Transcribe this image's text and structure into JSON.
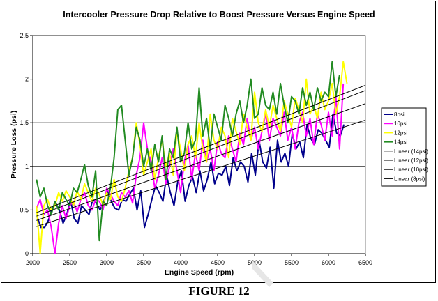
{
  "chart_data": {
    "type": "line",
    "title": "Intercooler Pressure Drop Relative to Boost Pressure Versus Engine Speed",
    "xlabel": "Engine Speed (rpm)",
    "ylabel": "Pressure Loss (psi)",
    "xlim": [
      2000,
      6500
    ],
    "ylim": [
      0,
      2.5
    ],
    "xticks": [
      "2000",
      "2500",
      "3000",
      "3500",
      "4000",
      "4500",
      "5000",
      "5500",
      "6000",
      "6500"
    ],
    "yticks": [
      "0",
      "0.5",
      "1",
      "1.5",
      "2",
      "2.5"
    ],
    "grid": "horizontal",
    "legend_position": "right",
    "series": [
      {
        "name": "8psi",
        "color": "#00008B",
        "x": [
          2060,
          2110,
          2160,
          2210,
          2260,
          2310,
          2360,
          2410,
          2460,
          2510,
          2560,
          2610,
          2660,
          2710,
          2760,
          2810,
          2860,
          2910,
          2960,
          3010,
          3060,
          3110,
          3160,
          3210,
          3260,
          3310,
          3360,
          3410,
          3460,
          3510,
          3560,
          3610,
          3660,
          3710,
          3760,
          3810,
          3860,
          3910,
          3960,
          4010,
          4060,
          4110,
          4160,
          4210,
          4260,
          4310,
          4360,
          4410,
          4460,
          4510,
          4560,
          4610,
          4660,
          4710,
          4760,
          4810,
          4860,
          4910,
          4960,
          5010,
          5060,
          5110,
          5160,
          5210,
          5260,
          5310,
          5360,
          5410,
          5460,
          5510,
          5560,
          5610,
          5660,
          5710,
          5760,
          5810,
          5860,
          5910,
          5960,
          6010,
          6060,
          6110,
          6160,
          6210
        ],
        "y": [
          0.42,
          0.3,
          0.3,
          0.38,
          0.52,
          0.58,
          0.5,
          0.35,
          0.45,
          0.62,
          0.4,
          0.35,
          0.55,
          0.5,
          0.45,
          0.62,
          0.58,
          0.5,
          0.6,
          0.72,
          0.6,
          0.52,
          0.5,
          0.62,
          0.6,
          0.68,
          0.75,
          0.5,
          0.72,
          0.3,
          0.45,
          0.62,
          0.78,
          0.7,
          0.6,
          0.9,
          0.7,
          0.55,
          0.82,
          0.95,
          0.6,
          0.78,
          0.88,
          0.7,
          0.95,
          0.72,
          0.85,
          1.05,
          0.8,
          0.92,
          0.9,
          1.0,
          0.78,
          1.1,
          0.95,
          1.05,
          1.0,
          0.82,
          1.15,
          0.9,
          1.3,
          1.05,
          0.98,
          1.22,
          0.75,
          1.3,
          1.05,
          1.15,
          1.0,
          1.38,
          1.2,
          1.28,
          1.1,
          1.48,
          1.32,
          1.25,
          1.42,
          1.38,
          1.3,
          1.22,
          1.6,
          1.38,
          1.35,
          1.48
        ]
      },
      {
        "name": "10psi",
        "color": "#FF00FF",
        "x": [
          2050,
          2100,
          2150,
          2200,
          2250,
          2300,
          2350,
          2400,
          2450,
          2500,
          2550,
          2600,
          2650,
          2700,
          2750,
          2800,
          2850,
          2900,
          2950,
          3000,
          3050,
          3100,
          3150,
          3200,
          3250,
          3300,
          3350,
          3400,
          3450,
          3500,
          3550,
          3600,
          3650,
          3700,
          3750,
          3800,
          3850,
          3900,
          3950,
          4000,
          4050,
          4100,
          4150,
          4200,
          4250,
          4300,
          4350,
          4400,
          4450,
          4500,
          4550,
          4600,
          4650,
          4700,
          4750,
          4800,
          4850,
          4900,
          4950,
          5000,
          5050,
          5100,
          5150,
          5200,
          5250,
          5300,
          5350,
          5400,
          5450,
          5500,
          5550,
          5600,
          5650,
          5700,
          5750,
          5800,
          5850,
          5900,
          5950,
          6000,
          6050,
          6100,
          6150,
          6200
        ],
        "y": [
          0.52,
          0.62,
          0.45,
          0.5,
          0.3,
          0.0,
          0.35,
          0.55,
          0.4,
          0.55,
          0.6,
          0.48,
          0.62,
          0.7,
          0.55,
          0.5,
          0.62,
          0.6,
          0.5,
          0.75,
          0.68,
          0.6,
          0.55,
          0.7,
          0.65,
          0.72,
          0.58,
          0.9,
          1.1,
          1.5,
          1.2,
          1.05,
          0.75,
          0.9,
          1.1,
          0.8,
          1.0,
          1.2,
          0.95,
          0.7,
          1.05,
          1.25,
          0.85,
          1.15,
          0.95,
          1.3,
          1.05,
          1.2,
          0.95,
          1.28,
          1.15,
          1.1,
          1.35,
          1.2,
          1.05,
          1.38,
          1.25,
          1.55,
          1.3,
          1.45,
          1.2,
          1.4,
          1.6,
          1.3,
          1.55,
          1.45,
          1.35,
          1.62,
          1.3,
          1.45,
          1.2,
          1.5,
          1.62,
          1.35,
          1.55,
          1.25,
          1.6,
          1.48,
          1.3,
          1.62,
          1.35,
          1.8,
          1.2,
          1.95
        ]
      },
      {
        "name": "12psi",
        "color": "#FFFF00",
        "x": [
          2050,
          2100,
          2150,
          2200,
          2250,
          2300,
          2350,
          2400,
          2450,
          2500,
          2550,
          2600,
          2650,
          2700,
          2750,
          2800,
          2850,
          2900,
          2950,
          3000,
          3050,
          3100,
          3150,
          3200,
          3250,
          3300,
          3350,
          3400,
          3450,
          3500,
          3550,
          3600,
          3650,
          3700,
          3750,
          3800,
          3850,
          3900,
          3950,
          4000,
          4050,
          4100,
          4150,
          4200,
          4250,
          4300,
          4350,
          4400,
          4450,
          4500,
          4550,
          4600,
          4650,
          4700,
          4750,
          4800,
          4850,
          4900,
          4950,
          5000,
          5050,
          5100,
          5150,
          5200,
          5250,
          5300,
          5350,
          5400,
          5450,
          5500,
          5550,
          5600,
          5650,
          5700,
          5750,
          5800,
          5850,
          5900,
          5950,
          6000,
          6050,
          6100,
          6150,
          6200,
          6250
        ],
        "y": [
          0.55,
          0.0,
          0.55,
          0.62,
          0.5,
          0.55,
          0.7,
          0.6,
          0.72,
          0.65,
          0.55,
          0.72,
          0.62,
          0.8,
          0.7,
          0.6,
          0.75,
          0.68,
          0.55,
          0.7,
          0.62,
          0.85,
          0.65,
          0.6,
          0.75,
          0.95,
          1.1,
          1.5,
          1.25,
          0.9,
          1.05,
          1.2,
          0.85,
          1.1,
          1.3,
          1.0,
          1.15,
          0.9,
          1.4,
          1.2,
          0.95,
          1.25,
          1.35,
          1.1,
          1.5,
          1.2,
          1.05,
          1.6,
          1.3,
          1.2,
          1.45,
          1.35,
          1.1,
          1.55,
          1.4,
          1.25,
          1.6,
          1.45,
          1.3,
          1.85,
          1.5,
          1.4,
          1.65,
          1.45,
          1.7,
          1.55,
          1.4,
          1.75,
          1.6,
          1.45,
          1.78,
          1.65,
          1.5,
          2.0,
          1.6,
          1.7,
          1.55,
          1.85,
          1.65,
          1.75,
          1.95,
          1.6,
          1.8,
          2.2,
          1.95
        ]
      },
      {
        "name": "14psi",
        "color": "#228B22",
        "x": [
          2050,
          2100,
          2150,
          2200,
          2250,
          2300,
          2350,
          2400,
          2450,
          2500,
          2550,
          2600,
          2650,
          2700,
          2750,
          2800,
          2850,
          2900,
          2950,
          3000,
          3050,
          3100,
          3150,
          3200,
          3250,
          3300,
          3350,
          3400,
          3450,
          3500,
          3550,
          3600,
          3650,
          3700,
          3750,
          3800,
          3850,
          3900,
          3950,
          4000,
          4050,
          4100,
          4150,
          4200,
          4250,
          4300,
          4350,
          4400,
          4450,
          4500,
          4550,
          4600,
          4650,
          4700,
          4750,
          4800,
          4850,
          4900,
          4950,
          5000,
          5050,
          5100,
          5150,
          5200,
          5250,
          5300,
          5350,
          5400,
          5450,
          5500,
          5550,
          5600,
          5650,
          5700,
          5750,
          5800,
          5850,
          5900,
          5950,
          6000,
          6050,
          6100,
          6150
        ],
        "y": [
          0.85,
          0.65,
          0.75,
          0.55,
          0.45,
          0.6,
          0.5,
          0.7,
          0.62,
          0.55,
          0.75,
          0.7,
          0.85,
          1.02,
          0.78,
          0.65,
          0.95,
          0.15,
          0.6,
          0.55,
          0.75,
          1.1,
          1.65,
          1.7,
          1.3,
          0.9,
          1.1,
          1.45,
          1.3,
          1.0,
          1.2,
          0.95,
          1.25,
          1.05,
          1.35,
          0.85,
          1.2,
          1.1,
          1.45,
          1.05,
          1.15,
          1.5,
          1.2,
          1.3,
          1.9,
          1.35,
          1.55,
          1.2,
          1.6,
          1.45,
          1.3,
          1.7,
          1.55,
          1.35,
          1.6,
          1.75,
          1.5,
          1.7,
          2.0,
          1.55,
          1.6,
          1.9,
          1.7,
          1.65,
          1.85,
          1.6,
          1.95,
          1.7,
          1.5,
          1.8,
          1.75,
          1.6,
          1.9,
          1.7,
          1.85,
          1.65,
          1.9,
          1.75,
          1.85,
          1.8,
          2.2,
          1.8,
          2.05
        ]
      },
      {
        "name": "Linear (14psi)",
        "color": "#000000",
        "x": [
          2050,
          6500
        ],
        "y": [
          0.47,
          1.93
        ]
      },
      {
        "name": "Linear (12psi)",
        "color": "#000000",
        "x": [
          2050,
          6500
        ],
        "y": [
          0.43,
          1.87
        ]
      },
      {
        "name": "Linear (10psi)",
        "color": "#000000",
        "x": [
          2050,
          6500
        ],
        "y": [
          0.38,
          1.72
        ]
      },
      {
        "name": "Linear (8psi)",
        "color": "#000000",
        "x": [
          2050,
          6500
        ],
        "y": [
          0.31,
          1.53
        ]
      }
    ]
  },
  "caption": "FIGURE 12"
}
